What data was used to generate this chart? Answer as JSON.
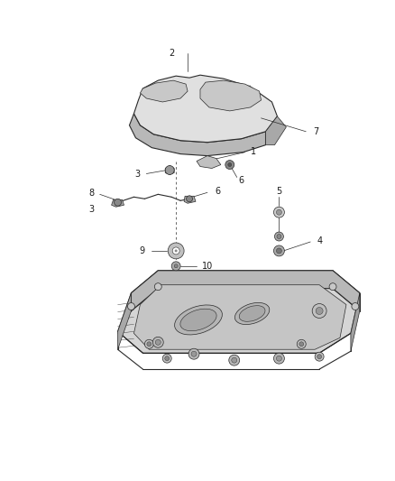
{
  "bg_color": "#ffffff",
  "line_color": "#2a2a2a",
  "label_color": "#1a1a1a",
  "fig_width": 4.38,
  "fig_height": 5.33,
  "dpi": 100
}
